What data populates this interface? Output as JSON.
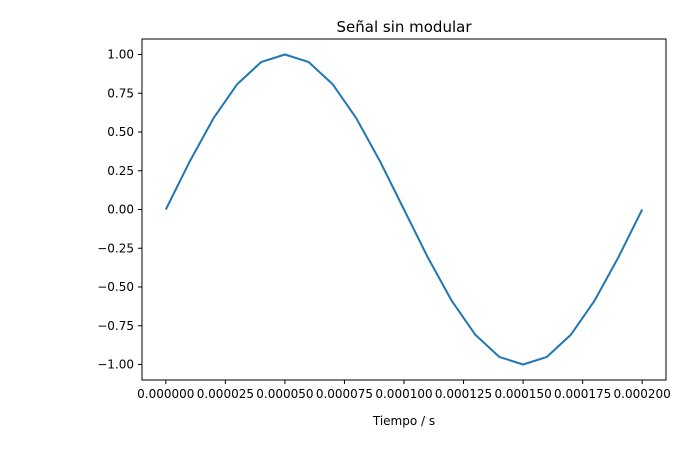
{
  "chart_data": {
    "type": "line",
    "title": "Señal sin modular",
    "xlabel": "Tiempo / s",
    "ylabel": "",
    "xlim": [
      -1e-05,
      0.00021
    ],
    "ylim": [
      -1.1,
      1.1
    ],
    "grid": false,
    "x_ticks": [
      0.0,
      2.5e-05,
      5e-05,
      7.5e-05,
      0.0001,
      0.000125,
      0.00015,
      0.000175,
      0.0002
    ],
    "x_tick_labels": [
      "0.000000",
      "0.000025",
      "0.000050",
      "0.000075",
      "0.000100",
      "0.000125",
      "0.000150",
      "0.000175",
      "0.000200"
    ],
    "y_ticks": [
      1.0,
      0.75,
      0.5,
      0.25,
      0.0,
      -0.25,
      -0.5,
      -0.75,
      -1.0
    ],
    "y_tick_labels": [
      "1.00",
      "0.75",
      "0.50",
      "0.25",
      "0.00",
      "−0.25",
      "−0.50",
      "−0.75",
      "−1.00"
    ],
    "series": [
      {
        "color": "#1f77b4",
        "x": [
          0.0,
          1e-05,
          2e-05,
          3e-05,
          4e-05,
          5e-05,
          6e-05,
          7e-05,
          8e-05,
          9e-05,
          0.0001,
          0.00011,
          0.00012,
          0.00013,
          0.00014,
          0.00015,
          0.00016,
          0.00017,
          0.00018,
          0.00019,
          0.0002
        ],
        "y": [
          0.0,
          0.309,
          0.588,
          0.809,
          0.951,
          1.0,
          0.951,
          0.809,
          0.588,
          0.309,
          0.0,
          -0.309,
          -0.588,
          -0.809,
          -0.951,
          -1.0,
          -0.951,
          -0.809,
          -0.588,
          -0.309,
          0.0
        ]
      }
    ]
  }
}
